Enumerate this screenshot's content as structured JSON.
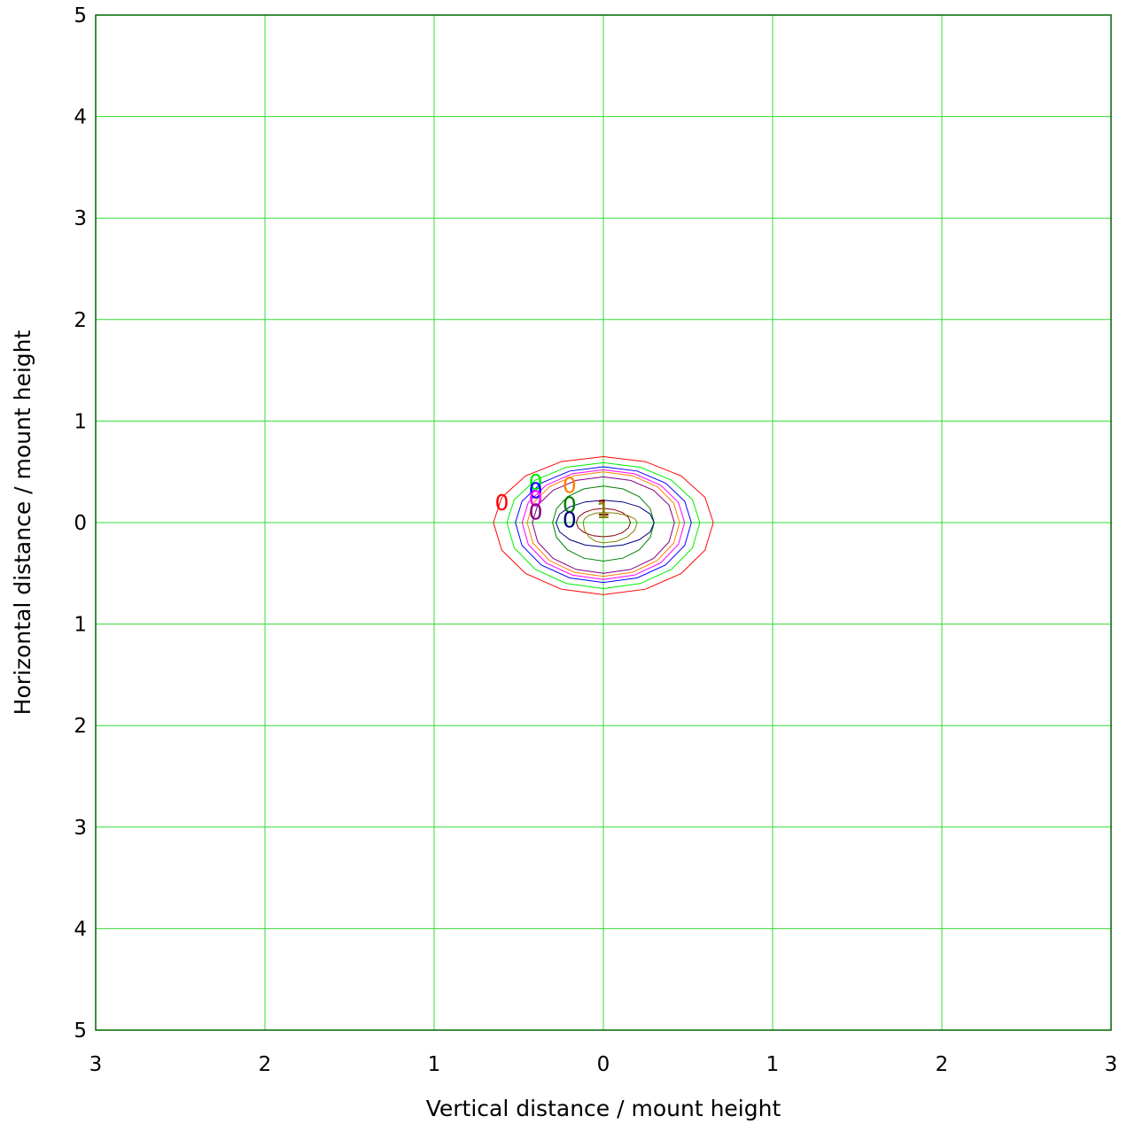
{
  "chart_data": {
    "type": "contour",
    "xlabel": "Vertical distance / mount height",
    "ylabel": "Horizontal distance / mount height",
    "xlim": [
      -3,
      3
    ],
    "ylim": [
      -5,
      5
    ],
    "x_ticks": [
      -3,
      -2,
      -1,
      0,
      1,
      2,
      3
    ],
    "x_tick_labels": [
      "3",
      "2",
      "1",
      "0",
      "1",
      "2",
      "3"
    ],
    "y_ticks": [
      5,
      4,
      3,
      2,
      1,
      0,
      -1,
      -2,
      -3,
      -4,
      -5
    ],
    "y_tick_labels": [
      "5",
      "4",
      "3",
      "2",
      "1",
      "0",
      "1",
      "2",
      "3",
      "4",
      "5"
    ],
    "grid": true,
    "grid_color": "#33dd33",
    "axis_color": "#006600",
    "series": [
      {
        "color": "#ff0000",
        "label": "0",
        "label_at": [
          -0.6,
          0.2
        ],
        "rx_left": 0.65,
        "rx_right": 0.65,
        "ry_top": 0.65,
        "ry_bottom": 0.71
      },
      {
        "color": "#00ee00",
        "label": "0",
        "label_at": [
          -0.4,
          0.4
        ],
        "rx_left": 0.57,
        "rx_right": 0.57,
        "ry_top": 0.59,
        "ry_bottom": 0.65
      },
      {
        "color": "#0000ff",
        "label": "0",
        "label_at": [
          -0.4,
          0.32
        ],
        "rx_left": 0.52,
        "rx_right": 0.52,
        "ry_top": 0.55,
        "ry_bottom": 0.59
      },
      {
        "color": "#ff00ff",
        "label": "0",
        "label_at": [
          -0.4,
          0.24
        ],
        "rx_left": 0.48,
        "rx_right": 0.48,
        "ry_top": 0.52,
        "ry_bottom": 0.56
      },
      {
        "color": "#ff8000",
        "label": "0",
        "label_at": [
          -0.2,
          0.37
        ],
        "rx_left": 0.45,
        "rx_right": 0.45,
        "ry_top": 0.5,
        "ry_bottom": 0.53
      },
      {
        "color": "#800080",
        "label": "0",
        "label_at": [
          -0.4,
          0.11
        ],
        "rx_left": 0.42,
        "rx_right": 0.42,
        "ry_top": 0.45,
        "ry_bottom": 0.5
      },
      {
        "color": "#008000",
        "label": "0",
        "label_at": [
          -0.2,
          0.18
        ],
        "rx_left": 0.3,
        "rx_right": 0.3,
        "ry_top": 0.36,
        "ry_bottom": 0.38
      },
      {
        "color": "#000080",
        "label": "0",
        "label_at": [
          -0.2,
          0.03
        ],
        "rx_left": 0.28,
        "rx_right": 0.3,
        "ry_top": 0.22,
        "ry_bottom": 0.24
      },
      {
        "color": "#800000",
        "label": "1",
        "label_at": [
          0.0,
          0.15
        ],
        "rx_left": 0.16,
        "rx_right": 0.16,
        "ry_top": 0.14,
        "ry_bottom": 0.14
      },
      {
        "color": "#808000",
        "label": "1",
        "label_at": [
          0.0,
          0.12
        ],
        "rx_left": 0.12,
        "rx_right": 0.2,
        "ry_top": 0.1,
        "ry_bottom": 0.2
      }
    ]
  }
}
